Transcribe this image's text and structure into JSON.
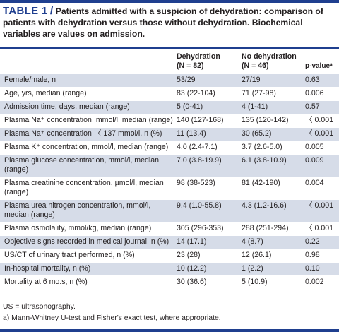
{
  "caption": {
    "label": "TABLE 1",
    "slash": "/",
    "text": " Patients admitted with a suspicion of dehydration: comparison of patients with dehydration versus those without dehydration. Biochemical variables are values on admission."
  },
  "columns": {
    "dehydration": "Dehydration",
    "dehydration_n": "(N = 82)",
    "no_dehydration": "No dehydration",
    "no_dehydration_n": "(N = 46)",
    "p_value": "p-valueᵃ"
  },
  "rows": [
    {
      "label": "Female/male, n",
      "dehydration": "53/29",
      "no_dehydration": "27/19",
      "p": "0.63"
    },
    {
      "label": "Age, yrs, median (range)",
      "dehydration": "83 (22-104)",
      "no_dehydration": "71 (27-98)",
      "p": "0.006"
    },
    {
      "label": "Admission time, days, median (range)",
      "dehydration": "5 (0-41)",
      "no_dehydration": "4 (1-41)",
      "p": "0.57"
    },
    {
      "label": "Plasma Na⁺ concentration, mmol/l, median (range)",
      "dehydration": "140 (127-168)",
      "no_dehydration": "135 (120-142)",
      "p": "〈 0.001"
    },
    {
      "label": "Plasma Na⁺ concentration 〈 137 mmol/l, n (%)",
      "dehydration": "11 (13.4)",
      "no_dehydration": "30 (65.2)",
      "p": "〈 0.001"
    },
    {
      "label": "Plasma K⁺ concentration, mmol/l, median (range)",
      "dehydration": "4.0 (2.4-7.1)",
      "no_dehydration": "3.7 (2.6-5.0)",
      "p": "0.005"
    },
    {
      "label": "Plasma glucose concentration, mmol/l, median (range)",
      "dehydration": "7.0 (3.8-19.9)",
      "no_dehydration": "6.1 (3.8-10.9)",
      "p": "0.009"
    },
    {
      "label": "Plasma creatinine concentration, µmol/l, median (range)",
      "dehydration": "98 (38-523)",
      "no_dehydration": "81 (42-190)",
      "p": "0.004"
    },
    {
      "label": "Plasma urea nitrogen concentration, mmol/l, median (range)",
      "dehydration": "9.4 (1.0-55.8)",
      "no_dehydration": "4.3 (1.2-16.6)",
      "p": "〈 0.001"
    },
    {
      "label": "Plasma osmolality, mmol/kg, median (range)",
      "dehydration": "305 (296-353)",
      "no_dehydration": "288 (251-294)",
      "p": "〈 0.001"
    },
    {
      "label": "Objective signs recorded in medical journal, n (%)",
      "dehydration": "14 (17.1)",
      "no_dehydration": "4 (8.7)",
      "p": "0.22"
    },
    {
      "label": "US/CT of urinary tract performed, n (%)",
      "dehydration": "23 (28)",
      "no_dehydration": "12 (26.1)",
      "p": "0.98"
    },
    {
      "label": "In-hospital mortality, n (%)",
      "dehydration": "10 (12.2)",
      "no_dehydration": "1 (2.2)",
      "p": "0.10"
    },
    {
      "label": "Mortality at 6 mo.s, n (%)",
      "dehydration": "30 (36.6)",
      "no_dehydration": "5 (10.9)",
      "p": "0.002"
    }
  ],
  "footnotes": [
    "US = ultrasonography.",
    "a) Mann-Whitney U-test and Fisher's exact test, where appropriate."
  ],
  "colors": {
    "accent": "#1f3f8f",
    "row_shade": "#d6dce8"
  }
}
